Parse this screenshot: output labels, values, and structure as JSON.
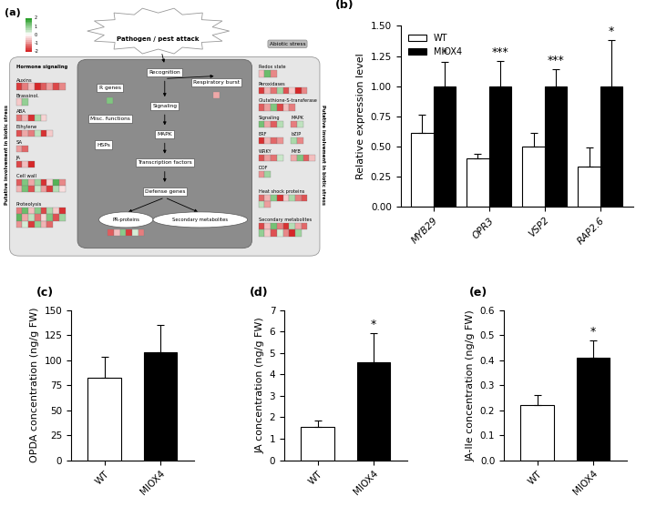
{
  "diagram": {
    "panel_label": "(a)",
    "title": "Pathogen / pest attack",
    "abiotic": "Abiotic stress",
    "side_labels": [
      "Putative involvement in biotic stress",
      "Putative involvement in biotic stress"
    ],
    "color_scale": {
      "range": [
        -2,
        2
      ],
      "ticks": [
        2,
        1,
        0,
        -1,
        -2
      ]
    },
    "flow": [
      {
        "label": "Recognition",
        "cells": []
      },
      {
        "label": "R genes",
        "cells": [
          1.2
        ]
      },
      {
        "label": "Respiratory burst",
        "cells": [
          -0.8
        ]
      },
      {
        "label": "Signaling",
        "cells": []
      },
      {
        "label": "MAPK",
        "cells": []
      },
      {
        "label": "Transcription factors",
        "cells": []
      },
      {
        "label": "Defense genes",
        "cells": []
      },
      {
        "label": "PR-proteins",
        "cells": [
          -1.5,
          -0.6,
          1.1,
          -1.8,
          0.4,
          -1.2
        ]
      },
      {
        "label": "Secondary metabolites",
        "cells": []
      },
      {
        "label": "Misc. functions",
        "cells": []
      },
      {
        "label": "HSPs",
        "cells": []
      }
    ],
    "left_groups": [
      {
        "label": "Hormone signaling",
        "cells": []
      },
      {
        "label": "Auxins",
        "cells": [
          -1.8,
          -1.2,
          -0.6,
          -2.0,
          -1.5,
          -0.9,
          -1.7,
          -1.1
        ]
      },
      {
        "label": "Brassinol.",
        "cells": [
          -0.5,
          1.0
        ]
      },
      {
        "label": "ABA",
        "cells": [
          -1.3,
          -0.7,
          -1.9,
          0.8,
          -0.4
        ]
      },
      {
        "label": "Ethylene",
        "cells": [
          -1.6,
          -0.8,
          -1.2,
          0.6,
          -1.9,
          -0.5
        ]
      },
      {
        "label": "SA",
        "cells": [
          -0.9,
          -1.4
        ]
      },
      {
        "label": "JA",
        "cells": [
          -1.7,
          -0.6,
          -2.0
        ]
      },
      {
        "label": "Cell wall",
        "cells": [
          -1.5,
          1.2,
          -0.8,
          0.9,
          -1.9,
          -0.4,
          1.6,
          -1.1,
          -0.7,
          1.3,
          -1.6,
          0.5,
          -0.9,
          -1.8,
          0.7,
          -0.3
        ]
      },
      {
        "label": "Proteolysis",
        "cells": [
          -1.2,
          1.4,
          -0.6,
          1.1,
          -1.7,
          0.8,
          -0.5,
          -1.9,
          1.5,
          -0.8,
          0.6,
          -1.3,
          -0.4,
          1.2,
          -1.6,
          0.9,
          -1.0,
          0.4,
          -1.8,
          1.0,
          -0.7,
          -1.4
        ]
      }
    ],
    "right_groups": [
      {
        "label": "Redox state",
        "cells": [
          -0.6,
          1.4,
          -1.1
        ]
      },
      {
        "label": "Peroxidases",
        "cells": [
          -1.8,
          -0.7,
          -1.3,
          0.9,
          -1.6,
          -0.5,
          -2.0,
          -1.1
        ]
      },
      {
        "label": "Glutathione-S-transferase",
        "cells": [
          -1.5,
          -0.9,
          1.2,
          -1.7,
          -0.6,
          -1.2
        ]
      },
      {
        "label": "Signaling",
        "cells": [
          1.3,
          -0.8,
          -1.5,
          0.7
        ]
      },
      {
        "label": "MAPK",
        "cells": [
          -1.2,
          0.6
        ]
      },
      {
        "label": "ERF",
        "cells": [
          -1.9,
          -0.7,
          -1.4,
          -1.0
        ]
      },
      {
        "label": "bZIP",
        "cells": [
          0.8,
          -1.1
        ]
      },
      {
        "label": "WRKY",
        "cells": [
          -1.6,
          -0.9,
          -1.3,
          0.5
        ]
      },
      {
        "label": "MYB",
        "cells": [
          -0.8,
          1.2,
          -1.5,
          -0.6
        ]
      },
      {
        "label": "DOF",
        "cells": [
          -1.0,
          0.9
        ]
      },
      {
        "label": "Heat shock proteins",
        "cells": [
          -1.4,
          -0.7,
          1.1,
          -1.9,
          -0.5,
          0.8,
          -1.2,
          -1.6,
          0.6,
          -0.9
        ]
      },
      {
        "label": "Secondary metabolites",
        "cells": [
          -1.7,
          -0.6,
          1.3,
          -1.2,
          -1.9,
          0.7,
          -0.8,
          -1.4,
          1.0,
          -0.5,
          -1.6,
          0.4,
          -1.1,
          -2.0,
          0.9
        ]
      }
    ]
  },
  "chart_data": [
    {
      "type": "bar",
      "panel_label": "(b)",
      "y_label": "Relative expression level",
      "categories": [
        "MYB29",
        "OPR3",
        "VSP2",
        "RAP2.6"
      ],
      "series": [
        {
          "name": "WT",
          "color": "#ffffff",
          "values": [
            0.61,
            0.4,
            0.5,
            0.33
          ],
          "errors": [
            0.15,
            0.04,
            0.11,
            0.16
          ]
        },
        {
          "name": "MIOX4",
          "color": "#000000",
          "values": [
            1.0,
            1.0,
            1.0,
            1.0
          ],
          "errors": [
            0.2,
            0.21,
            0.14,
            0.38
          ],
          "significance": [
            "*",
            "***",
            "***",
            "*"
          ]
        }
      ],
      "ylim": [
        0,
        1.5
      ],
      "yticks": [
        {
          "value": 0,
          "label": "0.00"
        },
        {
          "value": 0.25,
          "label": "0.25"
        },
        {
          "value": 0.5,
          "label": "0.50"
        },
        {
          "value": 0.75,
          "label": "0.75"
        },
        {
          "value": 1.0,
          "label": "1.00"
        },
        {
          "value": 1.25,
          "label": "1.25"
        },
        {
          "value": 1.5,
          "label": "1.50"
        }
      ],
      "legend": "upper left"
    },
    {
      "type": "bar",
      "panel_label": "(c)",
      "y_label": "OPDA concentration (ng/g FW)",
      "categories": [
        "WT",
        "MIOX4"
      ],
      "values": [
        82,
        108
      ],
      "errors": [
        21,
        27
      ],
      "significance": [
        null,
        null
      ],
      "colors": [
        "#ffffff",
        "#000000"
      ],
      "ylim": [
        0,
        150
      ],
      "yticks": [
        0,
        25,
        50,
        75,
        100,
        125,
        150
      ]
    },
    {
      "type": "bar",
      "panel_label": "(d)",
      "y_label": "JA concentration (ng/g FW)",
      "categories": [
        "WT",
        "MIOX4"
      ],
      "values": [
        1.55,
        4.55
      ],
      "errors": [
        0.3,
        1.4
      ],
      "significance": [
        null,
        "*"
      ],
      "colors": [
        "#ffffff",
        "#000000"
      ],
      "ylim": [
        0,
        7
      ],
      "yticks": [
        0,
        1,
        2,
        3,
        4,
        5,
        6,
        7
      ]
    },
    {
      "type": "bar",
      "panel_label": "(e)",
      "y_label": "JA-Ile concentration (ng/g FW)",
      "categories": [
        "WT",
        "MIOX4"
      ],
      "values": [
        0.22,
        0.41
      ],
      "errors": [
        0.04,
        0.07
      ],
      "significance": [
        null,
        "*"
      ],
      "colors": [
        "#ffffff",
        "#000000"
      ],
      "ylim": [
        0,
        0.6
      ],
      "yticks": [
        {
          "value": 0,
          "label": "0.0"
        },
        {
          "value": 0.1,
          "label": "0.1"
        },
        {
          "value": 0.2,
          "label": "0.2"
        },
        {
          "value": 0.3,
          "label": "0.3"
        },
        {
          "value": 0.4,
          "label": "0.4"
        },
        {
          "value": 0.5,
          "label": "0.5"
        },
        {
          "value": 0.6,
          "label": "0.6"
        }
      ]
    }
  ]
}
